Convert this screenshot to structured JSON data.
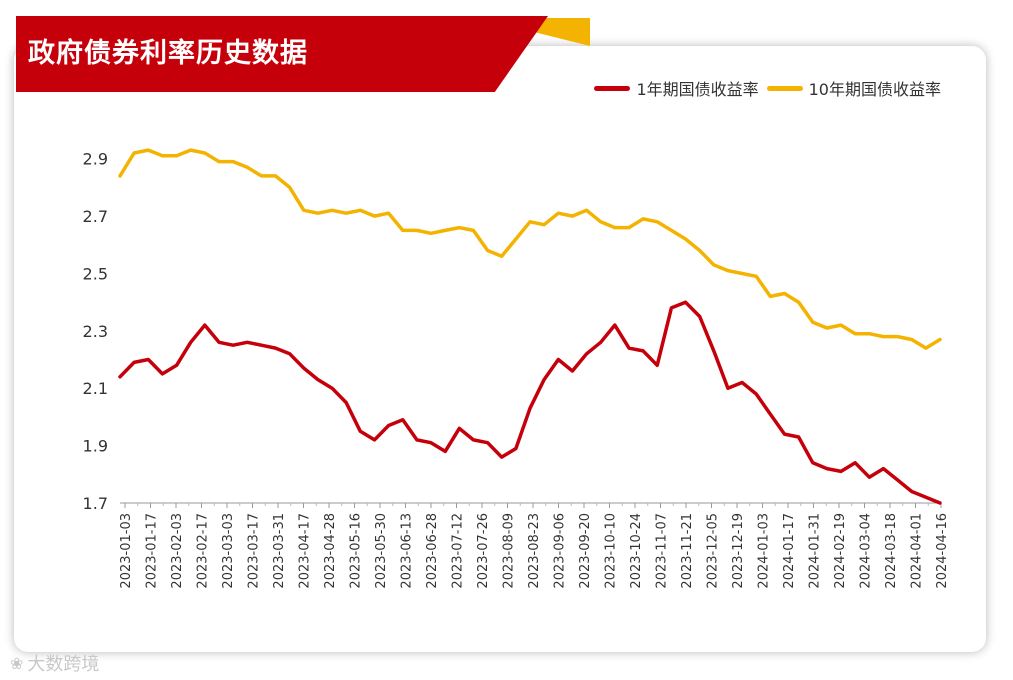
{
  "title": "政府债券利率历史数据",
  "watermark": "大数跨境",
  "chart_data": {
    "type": "line",
    "ylim": [
      1.7,
      3.0
    ],
    "yticks": [
      1.7,
      1.9,
      2.1,
      2.3,
      2.5,
      2.7,
      2.9
    ],
    "legend_position": "top-right",
    "grid": false,
    "x_ticks": [
      "2023-01-03",
      "2023-01-17",
      "2023-02-03",
      "2023-02-17",
      "2023-03-03",
      "2023-03-17",
      "2023-03-31",
      "2023-04-17",
      "2023-04-28",
      "2023-05-16",
      "2023-05-30",
      "2023-06-13",
      "2023-06-28",
      "2023-07-12",
      "2023-07-26",
      "2023-08-09",
      "2023-08-23",
      "2023-09-06",
      "2023-09-20",
      "2023-10-10",
      "2023-10-24",
      "2023-11-07",
      "2023-11-21",
      "2023-12-05",
      "2023-12-19",
      "2024-01-03",
      "2024-01-17",
      "2024-01-31",
      "2024-02-19",
      "2024-03-04",
      "2024-03-18",
      "2024-04-01",
      "2024-04-16"
    ],
    "series": [
      {
        "name": "1年期国债收益率",
        "color": "#c6000b",
        "values": [
          2.14,
          2.19,
          2.2,
          2.15,
          2.18,
          2.26,
          2.32,
          2.26,
          2.25,
          2.26,
          2.25,
          2.24,
          2.22,
          2.17,
          2.13,
          2.1,
          2.05,
          1.95,
          1.92,
          1.97,
          1.99,
          1.92,
          1.91,
          1.88,
          1.96,
          1.92,
          1.91,
          1.86,
          1.89,
          2.03,
          2.13,
          2.2,
          2.16,
          2.22,
          2.26,
          2.32,
          2.24,
          2.23,
          2.18,
          2.38,
          2.4,
          2.35,
          2.23,
          2.1,
          2.12,
          2.08,
          2.01,
          1.94,
          1.93,
          1.84,
          1.82,
          1.81,
          1.84,
          1.79,
          1.82,
          1.78,
          1.74,
          1.72,
          1.7
        ]
      },
      {
        "name": "10年期国债收益率",
        "color": "#f3b300",
        "values": [
          2.84,
          2.92,
          2.93,
          2.91,
          2.91,
          2.93,
          2.92,
          2.89,
          2.89,
          2.87,
          2.84,
          2.84,
          2.8,
          2.72,
          2.71,
          2.72,
          2.71,
          2.72,
          2.7,
          2.71,
          2.65,
          2.65,
          2.64,
          2.65,
          2.66,
          2.65,
          2.58,
          2.56,
          2.62,
          2.68,
          2.67,
          2.71,
          2.7,
          2.72,
          2.68,
          2.66,
          2.66,
          2.69,
          2.68,
          2.65,
          2.62,
          2.58,
          2.53,
          2.51,
          2.5,
          2.49,
          2.42,
          2.43,
          2.4,
          2.33,
          2.31,
          2.32,
          2.29,
          2.29,
          2.28,
          2.28,
          2.27,
          2.24,
          2.27
        ]
      }
    ]
  }
}
